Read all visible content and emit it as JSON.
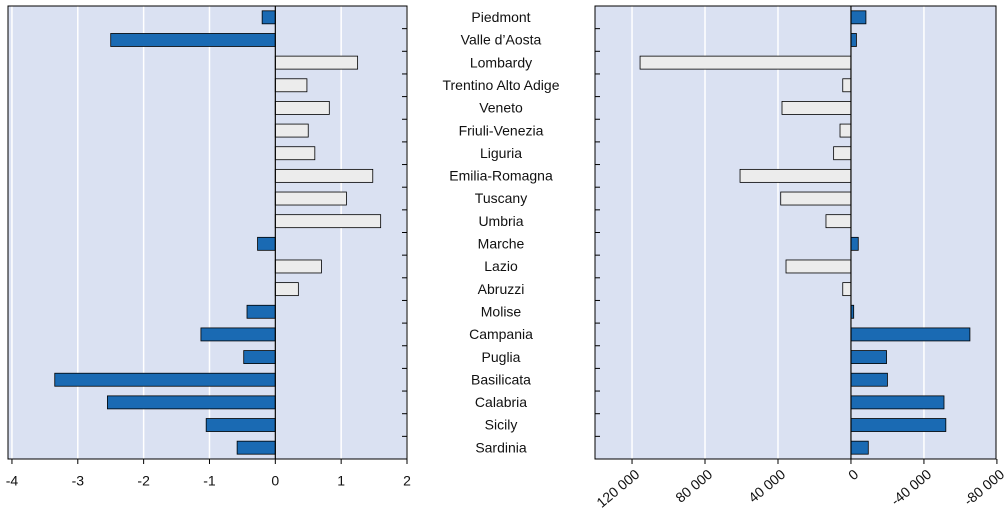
{
  "chart_data": [
    {
      "type": "hbar",
      "categories": [
        "Piedmont",
        "Valle d’Aosta",
        "Lombardy",
        "Trentino Alto Adige",
        "Veneto",
        "Friuli-Venezia",
        "Liguria",
        "Emilia-Romagna",
        "Tuscany",
        "Umbria",
        "Marche",
        "Lazio",
        "Abruzzi",
        "Molise",
        "Campania",
        "Puglia",
        "Basilicata",
        "Calabria",
        "Sicily",
        "Sardinia"
      ],
      "values": [
        -0.2,
        -2.5,
        1.25,
        0.48,
        0.82,
        0.5,
        0.6,
        1.48,
        1.08,
        1.6,
        -0.27,
        0.7,
        0.35,
        -0.43,
        -1.13,
        -0.48,
        -3.35,
        -2.55,
        -1.05,
        -0.58
      ],
      "xlim": [
        -4.06,
        2
      ],
      "xticks": [
        -4,
        -3,
        -2,
        -1,
        0,
        1,
        2
      ],
      "negative_color": "#1a6ab3",
      "positive_color": "#ececec",
      "grid": true
    },
    {
      "type": "hbar",
      "values": [
        -8200,
        -3000,
        115600,
        4500,
        37800,
        6000,
        9500,
        60800,
        38500,
        13700,
        -4000,
        35600,
        4500,
        -1500,
        -65200,
        -19500,
        -20000,
        -51000,
        -52000,
        -9500
      ],
      "xlim": [
        140300,
        -79500
      ],
      "xticks": [
        {
          "value": 120000,
          "label": "120 000"
        },
        {
          "value": 80000,
          "label": "80 000"
        },
        {
          "value": 40000,
          "label": "40 000"
        },
        0,
        {
          "value": -40000,
          "label": "-40 000"
        },
        {
          "value": -80000,
          "label": "-80 000"
        }
      ],
      "negative_color": "#1a6ab3",
      "positive_color": "#ececec",
      "grid": true
    }
  ]
}
